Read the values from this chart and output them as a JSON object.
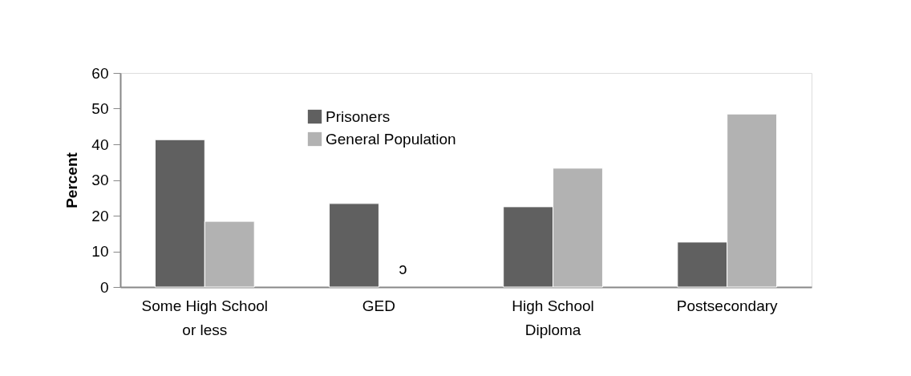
{
  "chart_data": {
    "type": "bar",
    "ylabel": "Percent",
    "categories": [
      "Some High School or less",
      "GED",
      "High School Diploma",
      "Postsecondary"
    ],
    "series": [
      {
        "name": "Prisoners",
        "color": "#606060",
        "values": [
          41.3,
          23.4,
          22.5,
          12.6
        ]
      },
      {
        "name": "General Population",
        "color": "#b2b2b2",
        "values": [
          18.4,
          null,
          33.3,
          48.5
        ]
      }
    ],
    "ylim": [
      0,
      60
    ],
    "yticks": [
      0,
      10,
      20,
      30,
      40,
      50,
      60
    ],
    "grid": false,
    "legend": "top",
    "annotations": [
      {
        "text": "ↄ",
        "x": "GED",
        "y": 5
      }
    ]
  }
}
